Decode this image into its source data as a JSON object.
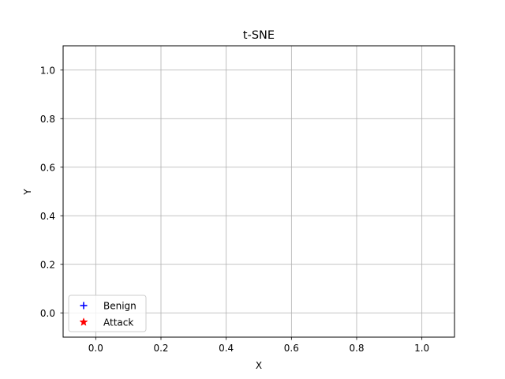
{
  "chart_data": {
    "type": "scatter",
    "title": "t-SNE",
    "xlabel": "X",
    "ylabel": "Y",
    "xlim": [
      -0.1,
      1.1
    ],
    "ylim": [
      -0.1,
      1.1
    ],
    "xticks": [
      0.0,
      0.2,
      0.4,
      0.6,
      0.8,
      1.0
    ],
    "yticks": [
      0.0,
      0.2,
      0.4,
      0.6,
      0.8,
      1.0
    ],
    "xtick_labels": [
      "0.0",
      "0.2",
      "0.4",
      "0.6",
      "0.8",
      "1.0"
    ],
    "ytick_labels": [
      "0.0",
      "0.2",
      "0.4",
      "0.6",
      "0.8",
      "1.0"
    ],
    "grid": true,
    "legend_position": "lower-left",
    "series": [
      {
        "name": "Benign",
        "marker": "plus",
        "color": "#0000ff",
        "points": []
      },
      {
        "name": "Attack",
        "marker": "star",
        "color": "#ff0000",
        "points": []
      }
    ]
  }
}
